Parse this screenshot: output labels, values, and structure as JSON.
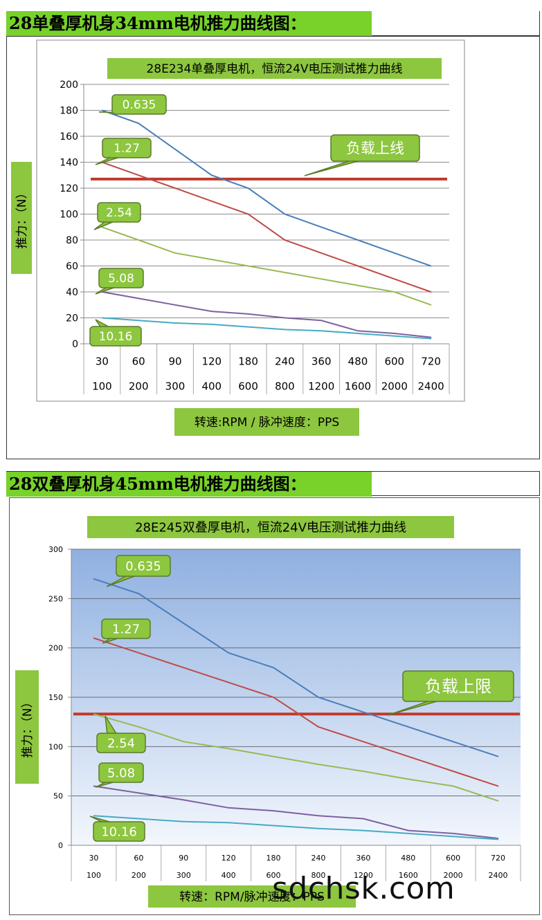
{
  "sections": [
    {
      "header": "28单叠厚机身34mm电机推力曲线图："
    },
    {
      "header": "28双叠厚机身45mm电机推力曲线图："
    }
  ],
  "chart_data": [
    {
      "type": "line",
      "title": "28E234单叠厚电机，恒流24V电压测试推力曲线",
      "xlabel": "转速:RPM / 脉冲速度：PPS",
      "ylabel": "推力：（N）",
      "categories": [
        "30",
        "60",
        "90",
        "120",
        "180",
        "240",
        "360",
        "480",
        "600",
        "720"
      ],
      "categories_secondary": [
        "100",
        "200",
        "300",
        "400",
        "600",
        "800",
        "1200",
        "1600",
        "2000",
        "2400"
      ],
      "ylim": [
        0,
        200
      ],
      "yticks": [
        0,
        20,
        40,
        60,
        80,
        100,
        120,
        140,
        160,
        180,
        200
      ],
      "grid": true,
      "series": [
        {
          "name": "0.635",
          "color": "#4a7ebb",
          "values": [
            180,
            170,
            150,
            130,
            120,
            100,
            90,
            80,
            70,
            60
          ]
        },
        {
          "name": "1.27",
          "color": "#be4b48",
          "values": [
            140,
            130,
            120,
            110,
            100,
            80,
            70,
            60,
            50,
            40
          ]
        },
        {
          "name": "2.54",
          "color": "#98b954",
          "values": [
            90,
            80,
            70,
            65,
            60,
            55,
            50,
            45,
            40,
            30
          ]
        },
        {
          "name": "5.08",
          "color": "#7d60a0",
          "values": [
            40,
            35,
            30,
            25,
            23,
            20,
            18,
            10,
            8,
            5
          ]
        },
        {
          "name": "10.16",
          "color": "#46aac5",
          "values": [
            20,
            18,
            16,
            15,
            13,
            11,
            10,
            8,
            6,
            4
          ]
        }
      ],
      "threshold": {
        "label": "负载上线",
        "value": 127,
        "color": "#c0392b"
      },
      "label_color": "#8dc63f"
    },
    {
      "type": "line",
      "title": "28E245双叠厚电机，恒流24V电压测试推力曲线",
      "xlabel": "转速：RPM/脉冲速度：PPS",
      "ylabel": "推力：（N）",
      "categories": [
        "30",
        "60",
        "90",
        "120",
        "180",
        "240",
        "360",
        "480",
        "600",
        "720"
      ],
      "categories_secondary": [
        "100",
        "200",
        "300",
        "400",
        "600",
        "800",
        "1200",
        "1600",
        "2000",
        "2400"
      ],
      "ylim": [
        0,
        300
      ],
      "yticks": [
        0,
        50,
        100,
        150,
        200,
        250,
        300
      ],
      "grid": true,
      "plot_background": "gradient-blue",
      "series": [
        {
          "name": "0.635",
          "color": "#4a7ebb",
          "values": [
            270,
            255,
            225,
            195,
            180,
            150,
            135,
            120,
            105,
            90
          ]
        },
        {
          "name": "1.27",
          "color": "#be4b48",
          "values": [
            210,
            195,
            180,
            165,
            150,
            120,
            105,
            90,
            75,
            60
          ]
        },
        {
          "name": "2.54",
          "color": "#98b954",
          "values": [
            133,
            120,
            105,
            98,
            90,
            82,
            75,
            67,
            60,
            45
          ]
        },
        {
          "name": "5.08",
          "color": "#7d60a0",
          "values": [
            60,
            53,
            46,
            38,
            35,
            30,
            27,
            15,
            12,
            7
          ]
        },
        {
          "name": "10.16",
          "color": "#46aac5",
          "values": [
            30,
            27,
            24,
            23,
            20,
            17,
            15,
            12,
            9,
            6
          ]
        }
      ],
      "threshold": {
        "label": "负载上限",
        "value": 133,
        "color": "#c0392b"
      },
      "label_color": "#8dc63f"
    }
  ],
  "watermark": "sdchsk.com"
}
